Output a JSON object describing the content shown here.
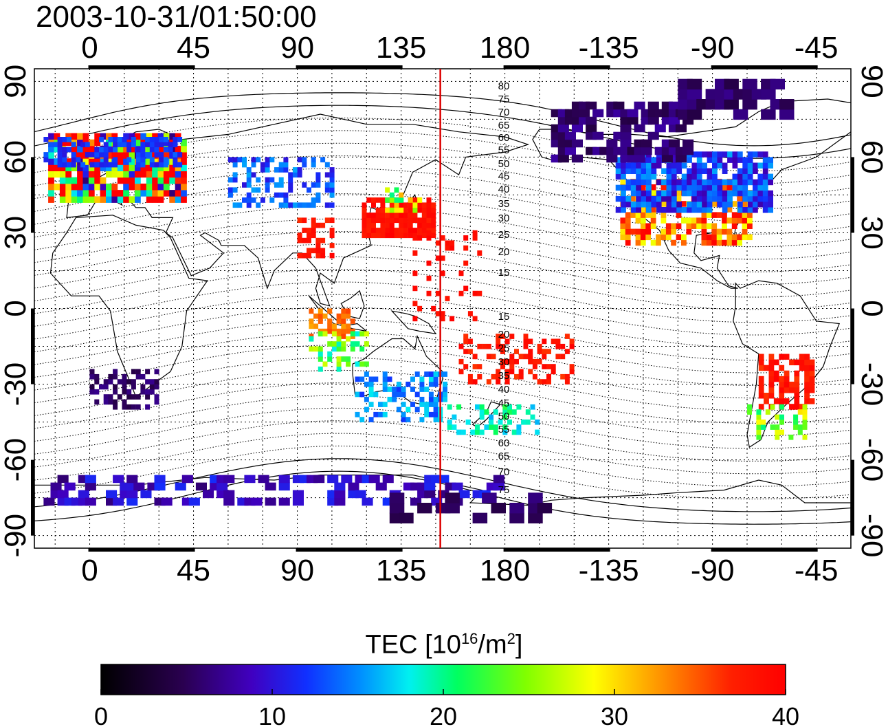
{
  "timestamp": "2003-10-31/01:50:00",
  "map": {
    "lon_tick_labels": [
      "0",
      "45",
      "90",
      "135",
      "180",
      "-135",
      "-90",
      "-45"
    ],
    "lat_tick_labels": [
      "90",
      "60",
      "30",
      "0",
      "-30",
      "-60",
      "-90"
    ],
    "lon_range": [
      -24,
      330
    ],
    "lat_range": [
      -95,
      95
    ],
    "grid": "dotted every 15 degrees",
    "meridian_marker": {
      "longitude": 152,
      "color": "#dd0000"
    },
    "contour_labels_north": [
      "80",
      "75",
      "70",
      "65",
      "60",
      "55",
      "50",
      "45",
      "40",
      "35",
      "30",
      "25",
      "20",
      "15"
    ],
    "contour_labels_south": [
      "15",
      "20",
      "25",
      "30",
      "35",
      "40",
      "45",
      "50",
      "55",
      "60",
      "65",
      "70",
      "75"
    ]
  },
  "colorbar": {
    "title_prefix": "TEC  [10",
    "title_exp1": "16",
    "title_mid": "/m",
    "title_exp2": "2",
    "title_suffix": "]",
    "tick_labels": [
      "0",
      "10",
      "20",
      "30",
      "40"
    ],
    "min": 0,
    "max": 40,
    "colors": [
      "#000000",
      "#3a0070",
      "#2020ff",
      "#00e0ff",
      "#00ff00",
      "#ffff00",
      "#ff8000",
      "#ff0000"
    ]
  }
}
